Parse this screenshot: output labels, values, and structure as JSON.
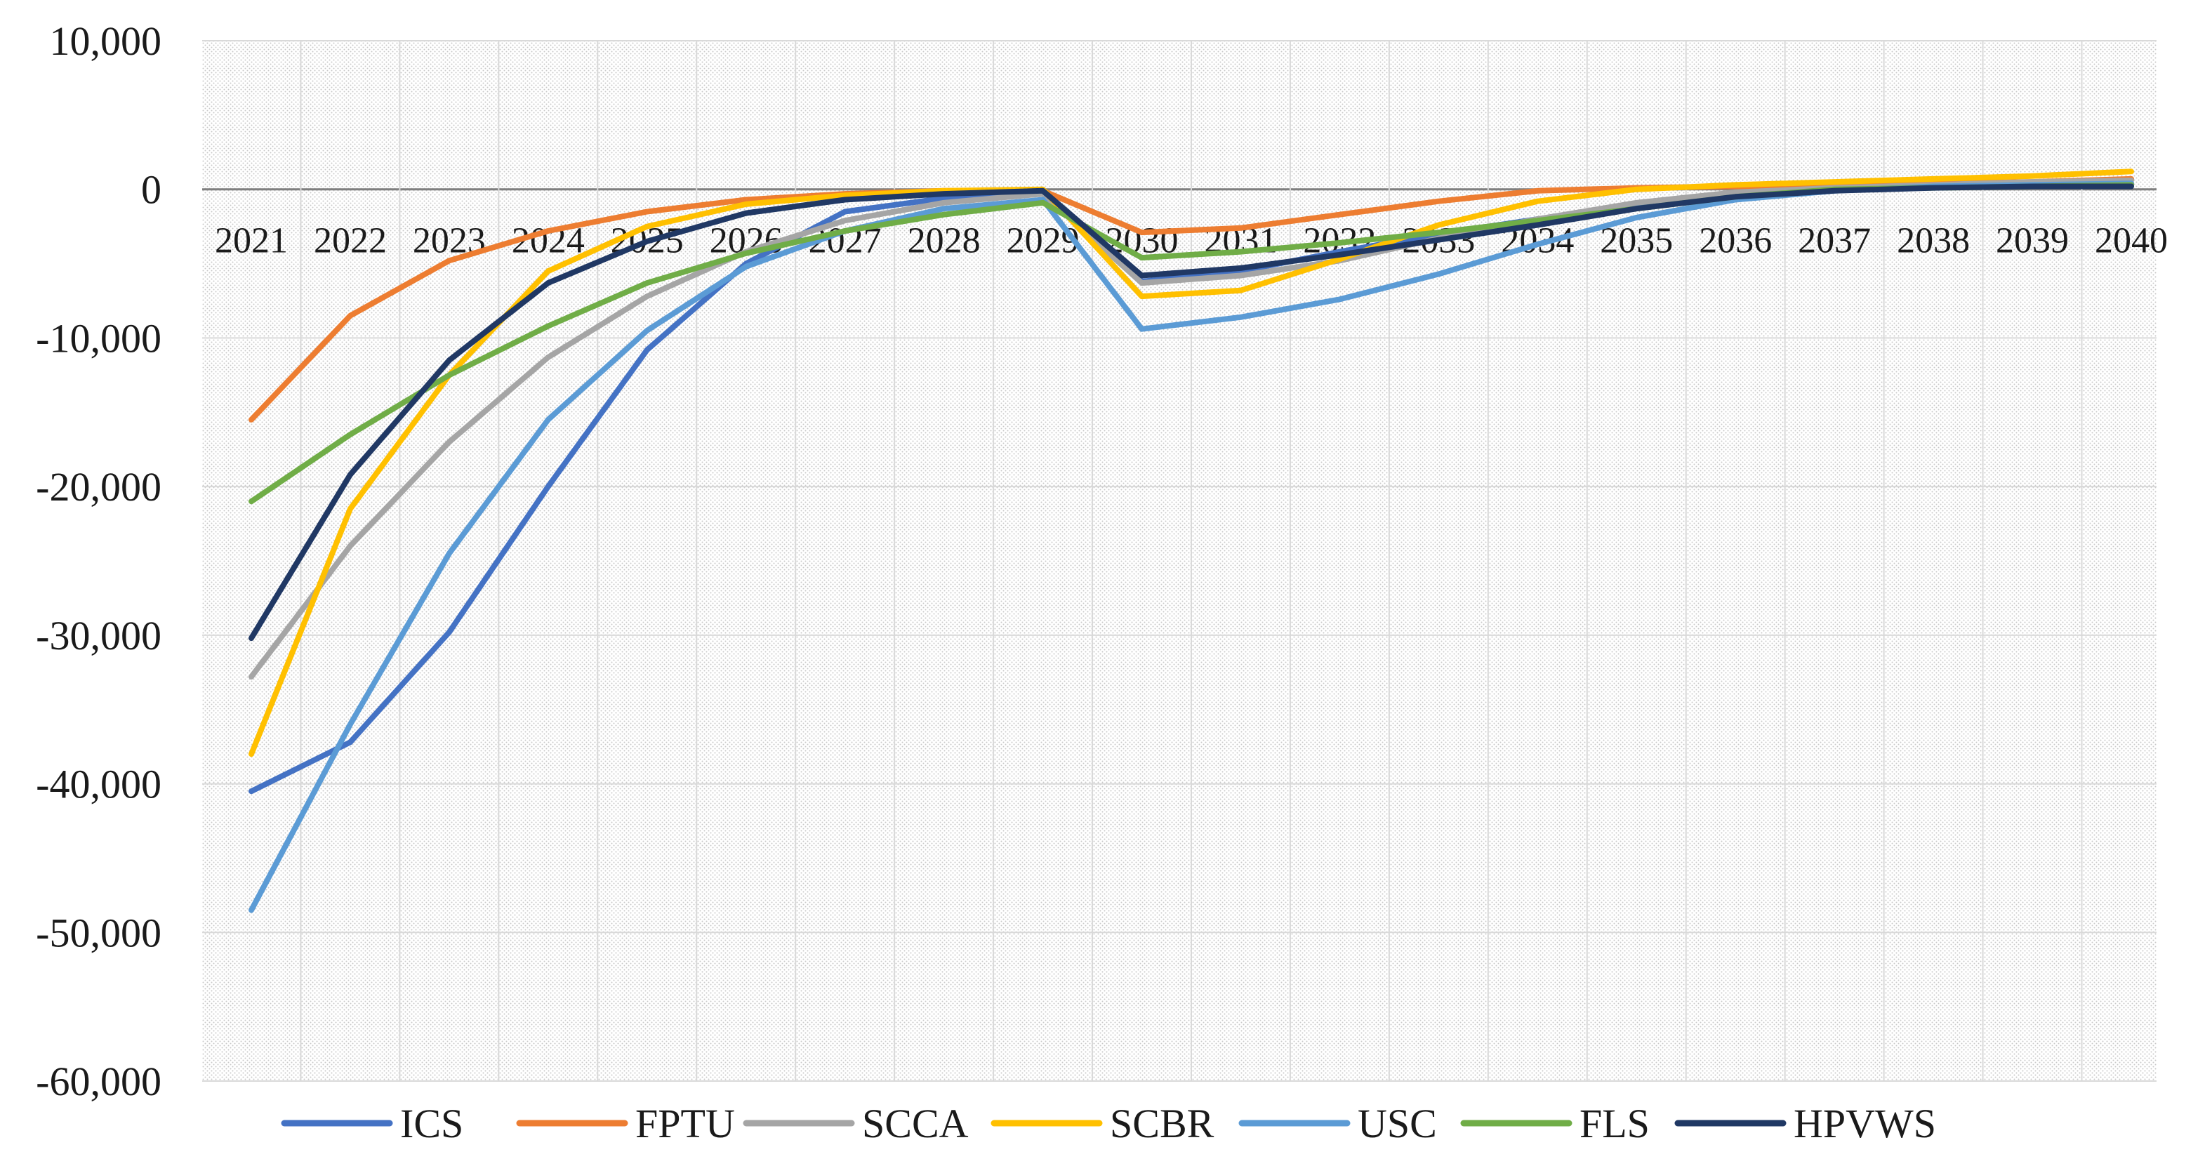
{
  "chart_data": {
    "type": "line",
    "title": "",
    "xlabel": "",
    "ylabel": "",
    "ylim": [
      -60000,
      10000
    ],
    "y_ticks": [
      10000,
      0,
      -10000,
      -20000,
      -30000,
      -40000,
      -50000,
      -60000
    ],
    "y_tick_labels": [
      "10,000",
      "0",
      "-10,000",
      "-20,000",
      "-30,000",
      "-40,000",
      "-50,000",
      "-60,000"
    ],
    "categories": [
      "2021",
      "2022",
      "2023",
      "2024",
      "2025",
      "2026",
      "2027",
      "2028",
      "2029",
      "2030",
      "2031",
      "2032",
      "2033",
      "2034",
      "2035",
      "2036",
      "2037",
      "2038",
      "2039",
      "2040"
    ],
    "grid": true,
    "legend_position": "bottom",
    "series": [
      {
        "name": "ICS",
        "color": "#4472C4",
        "values": [
          -40500,
          -37200,
          -29800,
          -20000,
          -10800,
          -5000,
          -1500,
          -600,
          -200,
          -6200,
          -5500,
          -4200,
          -3000,
          -2000,
          -1200,
          -400,
          0,
          200,
          300,
          400
        ]
      },
      {
        "name": "FPTU",
        "color": "#ED7D31",
        "values": [
          -15500,
          -8500,
          -4800,
          -2800,
          -1500,
          -700,
          -300,
          -100,
          -100,
          -2900,
          -2600,
          -1700,
          -800,
          -100,
          100,
          200,
          300,
          400,
          500,
          700
        ]
      },
      {
        "name": "SCCA",
        "color": "#A5A5A5",
        "values": [
          -32800,
          -24000,
          -17000,
          -11300,
          -7200,
          -4200,
          -2100,
          -900,
          -300,
          -6300,
          -5800,
          -4800,
          -3300,
          -2000,
          -900,
          -200,
          100,
          300,
          500,
          600
        ]
      },
      {
        "name": "SCBR",
        "color": "#FFC000",
        "values": [
          -38000,
          -21500,
          -12500,
          -5500,
          -2500,
          -1000,
          -400,
          -100,
          0,
          -7200,
          -6800,
          -4700,
          -2400,
          -800,
          0,
          300,
          500,
          700,
          900,
          1200
        ]
      },
      {
        "name": "USC",
        "color": "#5B9BD5",
        "values": [
          -48500,
          -36000,
          -24500,
          -15500,
          -9500,
          -5200,
          -2800,
          -1300,
          -700,
          -9400,
          -8600,
          -7400,
          -5700,
          -3700,
          -1900,
          -700,
          -100,
          200,
          300,
          400
        ]
      },
      {
        "name": "FLS",
        "color": "#70AD47",
        "values": [
          -21000,
          -16500,
          -12500,
          -9200,
          -6300,
          -4300,
          -2800,
          -1700,
          -900,
          -4600,
          -4200,
          -3600,
          -2900,
          -2100,
          -1300,
          -500,
          0,
          100,
          200,
          300
        ]
      },
      {
        "name": "HPVWS",
        "color": "#203864",
        "values": [
          -30200,
          -19200,
          -11500,
          -6300,
          -3500,
          -1600,
          -700,
          -300,
          -100,
          -5800,
          -5300,
          -4400,
          -3400,
          -2400,
          -1300,
          -500,
          -100,
          100,
          200,
          200
        ]
      }
    ]
  }
}
